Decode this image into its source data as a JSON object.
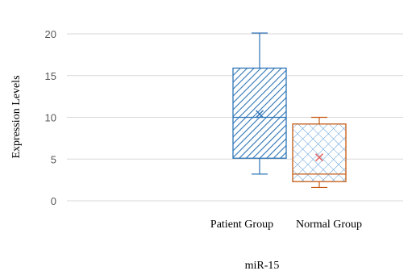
{
  "chart_data": {
    "type": "box",
    "ylabel": "Expression Levels",
    "xlabel": "miR-15",
    "ylim": [
      0,
      20
    ],
    "yticks": [
      0,
      5,
      10,
      15,
      20
    ],
    "grid": true,
    "legend": "none",
    "series": [
      {
        "name": "Patient Group",
        "min": 3.2,
        "q1": 5.1,
        "median": 10.0,
        "q3": 15.9,
        "max": 20.1,
        "mean": 10.4,
        "color": "#2E75B6",
        "pattern": "diagonal-stripes"
      },
      {
        "name": "Normal Group",
        "min": 1.6,
        "q1": 2.3,
        "median": 3.2,
        "q3": 9.2,
        "max": 10.0,
        "mean": 5.2,
        "color": "#C55A11",
        "pattern": "crosshatch"
      }
    ]
  }
}
